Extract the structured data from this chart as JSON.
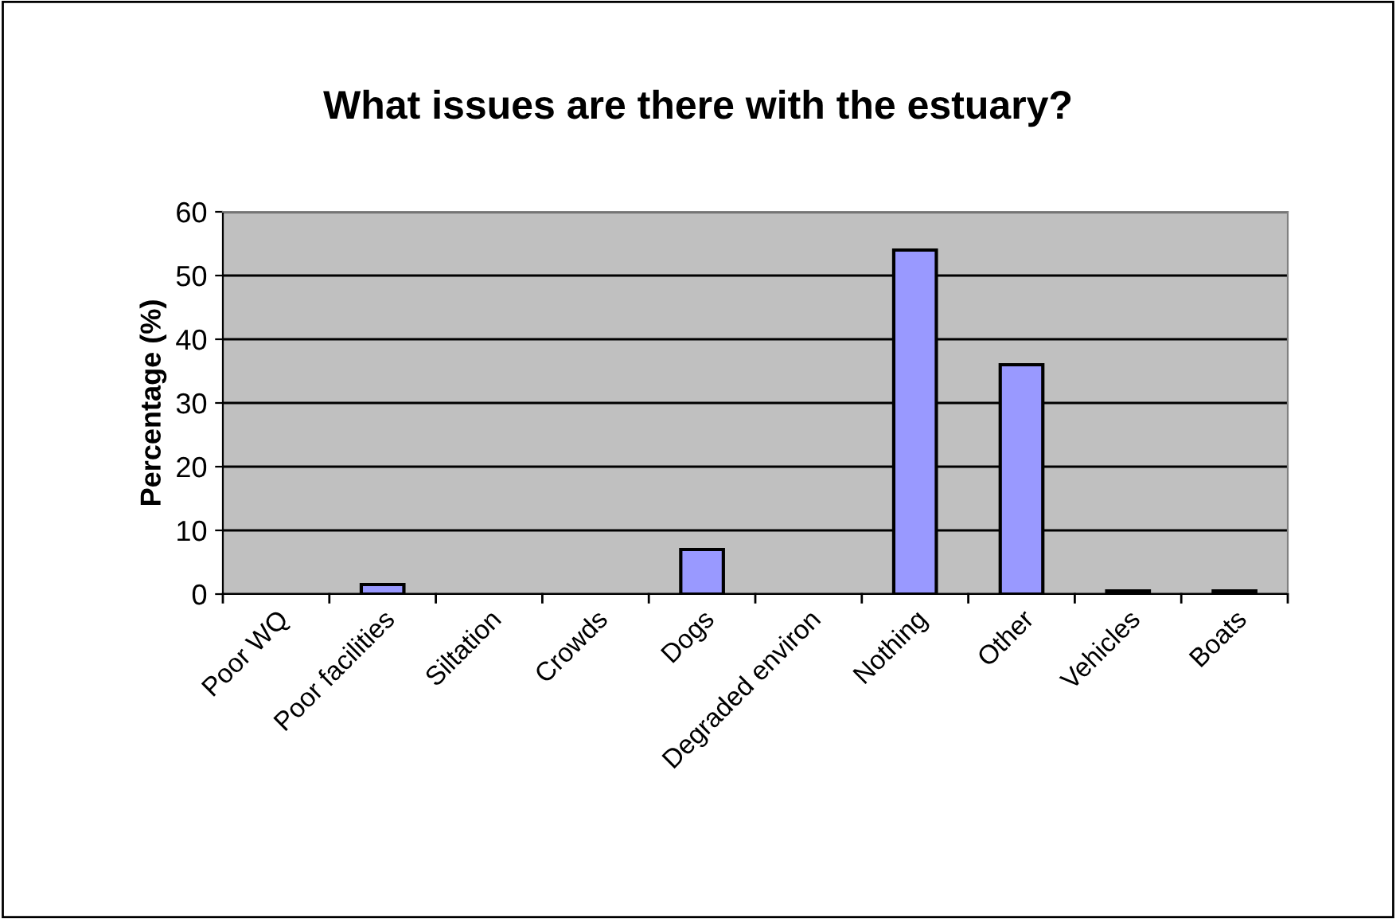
{
  "chart_data": {
    "type": "bar",
    "title": "What issues are there with the estuary?",
    "ylabel": "Percentage (%)",
    "categories": [
      "Poor WQ",
      "Poor facilities",
      "Siltation",
      "Crowds",
      "Dogs",
      "Degraded environ",
      "Nothing",
      "Other",
      "Vehicles",
      "Boats"
    ],
    "values": [
      0,
      1.5,
      0,
      0,
      7,
      0,
      54,
      36,
      0.5,
      0.5
    ],
    "color": "#9999ff",
    "ylim": [
      0,
      60
    ],
    "yticks": [
      0,
      10,
      20,
      30,
      40,
      50,
      60
    ],
    "grid": "y",
    "legend": false
  }
}
